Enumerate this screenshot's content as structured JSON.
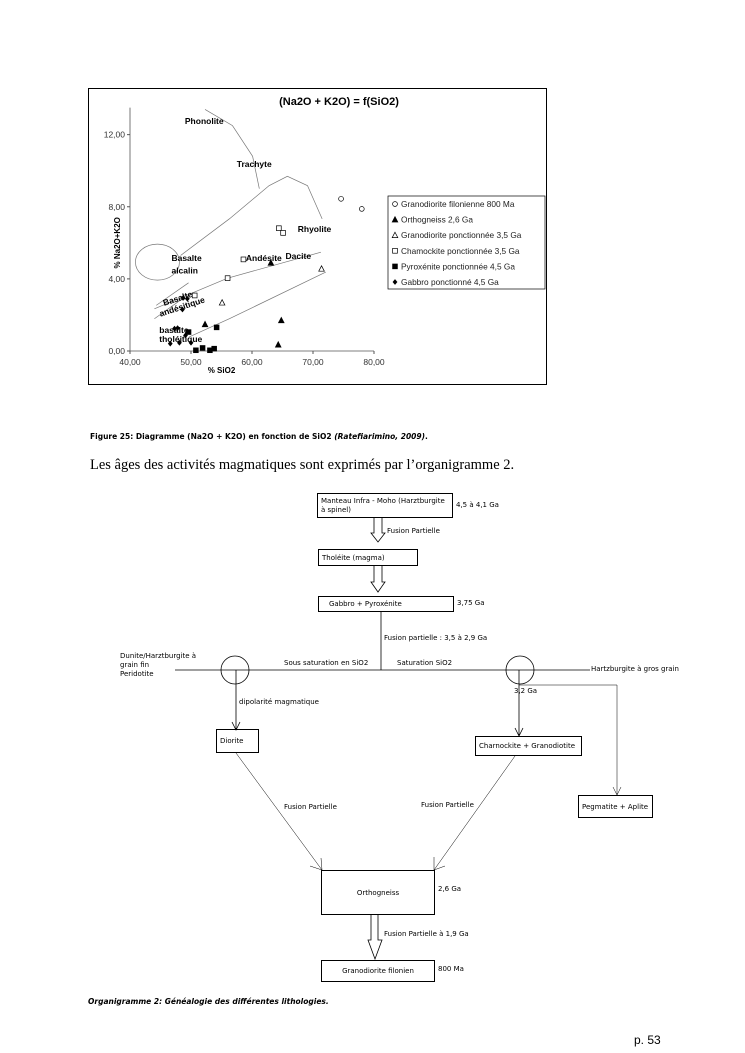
{
  "chart_data": {
    "type": "scatter",
    "title": "(Na2O + K2O) = f(SiO2)",
    "xlabel": "% SiO2",
    "ylabel": "% Na2O+K2O",
    "xlim": [
      40,
      80
    ],
    "ylim": [
      0,
      13.5
    ],
    "xticks": [
      "40,00",
      "50,00",
      "60,00",
      "70,00",
      "80,00"
    ],
    "xtick_values": [
      40,
      50,
      60,
      70,
      80
    ],
    "yticks": [
      "0,00",
      "4,00",
      "8,00",
      "12,00"
    ],
    "ytick_values": [
      0,
      4,
      8,
      12
    ],
    "grid": false,
    "legend_placement": "right",
    "series": [
      {
        "name": "Granodiorite filonienne 800 Ma",
        "marker": "open-circle",
        "points": [
          [
            74.6,
            8.44
          ],
          [
            78.0,
            7.88
          ]
        ]
      },
      {
        "name": "Orthogneiss 2,6 Ga",
        "marker": "filled-triangle",
        "points": [
          [
            63.1,
            4.89
          ],
          [
            52.3,
            1.48
          ],
          [
            64.8,
            1.7
          ],
          [
            64.3,
            0.35
          ]
        ]
      },
      {
        "name": "Granodiorite ponctionnée 3,5 Ga",
        "marker": "open-triangle",
        "points": [
          [
            55.1,
            2.68
          ],
          [
            71.4,
            4.56
          ]
        ]
      },
      {
        "name": "Chamockite ponctionnée 3,5 Ga",
        "marker": "open-square",
        "points": [
          [
            64.4,
            6.81
          ],
          [
            65.1,
            6.55
          ],
          [
            58.6,
            5.08
          ],
          [
            50.6,
            3.08
          ],
          [
            56.0,
            4.04
          ]
        ]
      },
      {
        "name": "Pyroxénite ponctionnée 4,5 Ga",
        "marker": "filled-square",
        "points": [
          [
            49.6,
            1.05
          ],
          [
            54.2,
            1.31
          ],
          [
            50.8,
            0.04
          ],
          [
            51.9,
            0.17
          ],
          [
            53.1,
            0.04
          ],
          [
            53.8,
            0.13
          ]
        ]
      },
      {
        "name": "Gabbro ponctionné 4,5 Ga",
        "marker": "filled-diamond",
        "points": [
          [
            48.7,
            2.94
          ],
          [
            49.4,
            2.9
          ],
          [
            48.6,
            2.3
          ],
          [
            47.3,
            1.24
          ],
          [
            47.8,
            1.27
          ],
          [
            49.1,
            0.87
          ],
          [
            46.6,
            0.41
          ],
          [
            48.1,
            0.46
          ],
          [
            50.0,
            0.46
          ]
        ]
      }
    ],
    "field_boundaries": [
      [
        [
          52.3,
          13.4
        ],
        [
          56.8,
          12.5
        ],
        [
          60.1,
          10.8
        ],
        [
          61.2,
          9.0
        ]
      ],
      [
        [
          48.3,
          5.3
        ],
        [
          56.3,
          7.33
        ],
        [
          62.8,
          9.17
        ],
        [
          65.8,
          9.69
        ],
        [
          69.1,
          9.17
        ],
        [
          71.5,
          7.33
        ]
      ],
      [
        [
          44.0,
          2.34
        ],
        [
          56.0,
          4.04
        ],
        [
          71.3,
          5.48
        ]
      ],
      [
        [
          44.3,
          2.53
        ],
        [
          49.6,
          3.78
        ]
      ],
      [
        [
          44.0,
          1.79
        ],
        [
          49.0,
          3.0
        ]
      ],
      [
        [
          49.7,
          0.78
        ],
        [
          56.3,
          1.79
        ],
        [
          72.1,
          4.38
        ]
      ]
    ],
    "field_labels": [
      "Phonolite",
      "Trachyte",
      "Rhyolite",
      "Andésite",
      "Dacite",
      "Basalte",
      "alcalin",
      "Basalte",
      "andésitique",
      "basalte",
      "tholéitique"
    ]
  },
  "figure_caption": {
    "main": "Figure 25: Diagramme (Na2O + K2O) en fonction de SiO2 ",
    "citation": "(Ratefiarimino, 2009)",
    "end": "."
  },
  "paragraph": "Les âges des activités magmatiques sont exprimés par l’organigramme 2.",
  "organigram": {
    "boxes": {
      "manteau": "Manteau Infra - Moho (Harztburgite à spinel)",
      "tholeite": "Tholéite (magma)",
      "gabbro": "Gabbro + Pyroxénite",
      "diorite": "Diorite",
      "charnockite": "Charnockite + Granodiotite",
      "pegmatite": "Pegmatite + Aplite",
      "orthogneiss": "Orthogneiss",
      "granodiorite": "Granodiorite filonien"
    },
    "ages": {
      "manteau": "4,5 à 4,1 Ga",
      "gabbro": "3,75 Ga",
      "branch": "3,2 Ga",
      "orthogneiss": "2,6 Ga",
      "granodiorite": "800 Ma"
    },
    "labels": {
      "fusion1": "Fusion Partielle",
      "fusion2": "Fusion partielle : 3,5 à 2,9 Ga",
      "left_end_1": "Dunite/Harztburgite à",
      "left_end_2": "grain fin",
      "left_end_3": "Peridotite",
      "right_end": "Hartzburgite à gros grain",
      "sous_sat": "Sous saturation en SiO2",
      "sat": "Saturation SiO2",
      "dipolarite": "dipolarité magmatique",
      "fusion_left": "Fusion Partielle",
      "fusion_right": "Fusion Partielle",
      "fusion_bottom": "Fusion Partielle à 1,9 Ga"
    },
    "caption": "Organigramme 2: Généalogie des différentes lithologies."
  },
  "page_number": "p. 53"
}
